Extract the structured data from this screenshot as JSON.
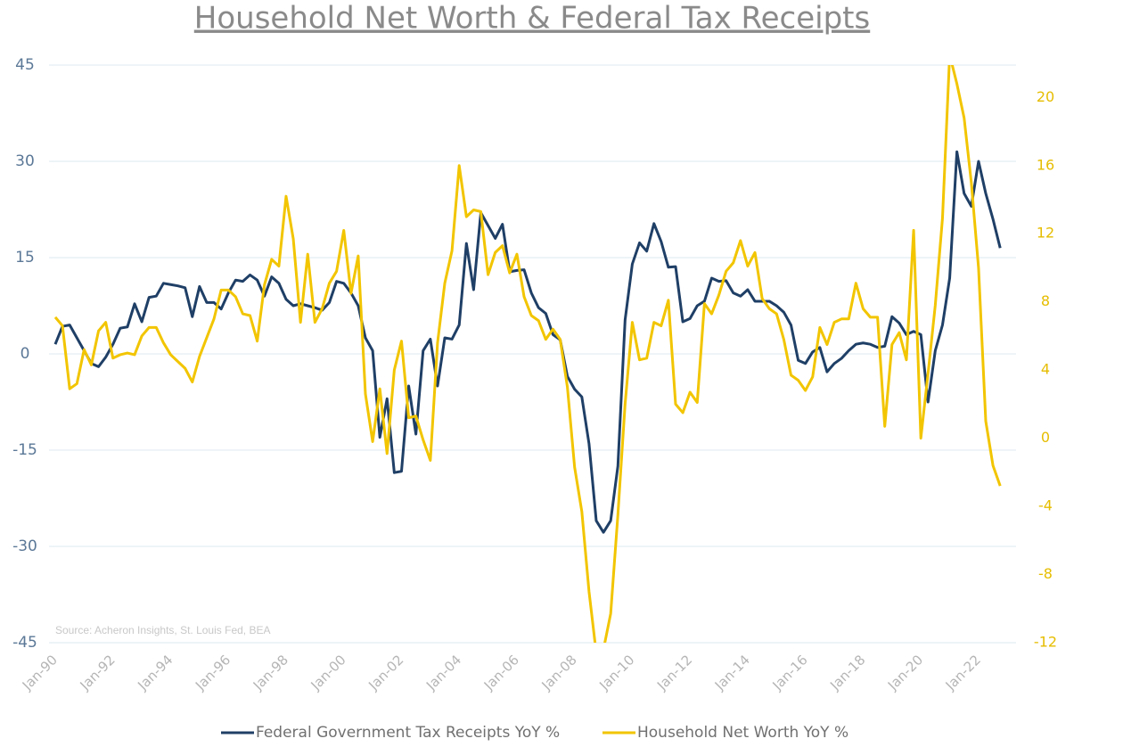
{
  "chart_data": {
    "type": "line",
    "title": "Household Net Worth & Federal Tax Receipts",
    "source": "Source: Acheron Insights, St. Louis Fed, BEA",
    "x": [
      1990,
      1990.25,
      1990.5,
      1990.75,
      1991,
      1991.25,
      1991.5,
      1991.75,
      1992,
      1992.25,
      1992.5,
      1992.75,
      1993,
      1993.25,
      1993.5,
      1993.75,
      1994,
      1994.25,
      1994.5,
      1994.75,
      1995,
      1995.25,
      1995.5,
      1995.75,
      1996,
      1996.25,
      1996.5,
      1996.75,
      1997,
      1997.25,
      1997.5,
      1997.75,
      1998,
      1998.25,
      1998.5,
      1998.75,
      1999,
      1999.25,
      1999.5,
      1999.75,
      2000,
      2000.25,
      2000.5,
      2000.75,
      2001,
      2001.25,
      2001.5,
      2001.75,
      2002,
      2002.25,
      2002.5,
      2002.75,
      2003,
      2003.25,
      2003.5,
      2003.75,
      2004,
      2004.25,
      2004.5,
      2004.75,
      2005,
      2005.25,
      2005.5,
      2005.75,
      2006,
      2006.25,
      2006.5,
      2006.75,
      2007,
      2007.25,
      2007.5,
      2007.75,
      2008,
      2008.25,
      2008.5,
      2008.75,
      2009,
      2009.25,
      2009.5,
      2009.75,
      2010,
      2010.25,
      2010.5,
      2010.75,
      2011,
      2011.25,
      2011.5,
      2011.75,
      2012,
      2012.25,
      2012.5,
      2012.75,
      2013,
      2013.25,
      2013.5,
      2013.75,
      2014,
      2014.25,
      2014.5,
      2014.75,
      2015,
      2015.25,
      2015.5,
      2015.75,
      2016,
      2016.25,
      2016.5,
      2016.75,
      2017,
      2017.25,
      2017.5,
      2017.75,
      2018,
      2018.25,
      2018.5,
      2018.75,
      2019,
      2019.25,
      2019.5,
      2019.75,
      2020,
      2020.25,
      2020.5,
      2020.75,
      2021,
      2021.25,
      2021.5,
      2021.75,
      2022,
      2022.25,
      2022.5,
      2022.75
    ],
    "series": [
      {
        "name": "Federal Government Tax Receipts YoY %",
        "color": "#1f3f66",
        "axis": "y",
        "values": [
          1.5,
          4.3,
          4.5,
          2.5,
          0.5,
          -1.5,
          -2,
          -0.5,
          1.5,
          4,
          4.2,
          7.8,
          5,
          8.8,
          9,
          11,
          10.8,
          10.6,
          10.3,
          5.8,
          10.5,
          8,
          8,
          7,
          9.5,
          11.5,
          11.3,
          12.3,
          11.5,
          9,
          12,
          11,
          8.5,
          7.5,
          7.8,
          7.5,
          7.2,
          6.8,
          8,
          11.3,
          11,
          9.5,
          7.5,
          2.5,
          0.5,
          -13,
          -7,
          -18.5,
          -18.3,
          -5,
          -12.5,
          0.5,
          2.3,
          -5,
          2.5,
          2.3,
          4.5,
          17.2,
          10,
          22,
          20,
          18,
          20.2,
          12.8,
          13,
          13.1,
          9.5,
          7.2,
          6.3,
          3,
          2.2,
          -3.5,
          -5.5,
          -6.7,
          -14,
          -26,
          -27.8,
          -26,
          -17.5,
          5.3,
          14,
          17.3,
          16,
          20.3,
          17.5,
          13.5,
          13.6,
          5,
          5.5,
          7.5,
          8.2,
          11.8,
          11.3,
          11.4,
          9.5,
          9,
          10,
          8.2,
          8.2,
          8.2,
          7.5,
          6.5,
          4.5,
          -1,
          -1.5,
          0.3,
          1,
          -2.8,
          -1.5,
          -0.7,
          0.5,
          1.5,
          1.7,
          1.5,
          1,
          1.2,
          5.8,
          4.8,
          3,
          3.5,
          3,
          -7.5,
          0.5,
          4.5,
          11.8,
          31.5,
          25,
          23,
          30,
          25,
          21,
          16.5
        ]
      },
      {
        "name": "Household Net Worth YoY %",
        "color": "#f2c500",
        "axis": "y2",
        "values": [
          7.1,
          6.6,
          2.9,
          3.2,
          5.2,
          4.3,
          6.3,
          6.8,
          4.7,
          4.9,
          5,
          4.9,
          6,
          6.5,
          6.5,
          5.6,
          4.9,
          4.5,
          4.1,
          3.3,
          4.8,
          5.9,
          7,
          8.7,
          8.7,
          8.3,
          7.3,
          7.2,
          5.7,
          9,
          10.5,
          10.1,
          14.2,
          11.7,
          6.8,
          10.8,
          6.8,
          7.6,
          9.1,
          9.8,
          12.2,
          8.5,
          10.7,
          2.6,
          -0.2,
          2.9,
          -0.9,
          4,
          5.7,
          1.2,
          1.3,
          -0.1,
          -1.3,
          5.6,
          9.1,
          11,
          16,
          13,
          13.4,
          13.3,
          9.6,
          10.9,
          11.3,
          9.7,
          10.8,
          8.3,
          7.2,
          6.9,
          5.8,
          6.4,
          5.8,
          3,
          -1.7,
          -4.3,
          -9,
          -12.6,
          -12.4,
          -10.3,
          -4.5,
          2,
          6.8,
          4.6,
          4.7,
          6.8,
          6.6,
          8.1,
          2,
          1.5,
          2.7,
          2.1,
          7.9,
          7.3,
          8.4,
          9.8,
          10.3,
          11.6,
          10.1,
          10.9,
          8.2,
          7.6,
          7.3,
          5.8,
          3.7,
          3.4,
          2.8,
          3.6,
          6.5,
          5.5,
          6.8,
          7,
          7,
          9.1,
          7.6,
          7.1,
          7.1,
          0.7,
          5.5,
          6.2,
          4.6,
          12.2,
          0,
          3.8,
          7.8,
          12.9,
          22.5,
          20.8,
          18.8,
          15,
          10,
          1,
          -1.6,
          -2.8
        ]
      }
    ],
    "xlim": [
      1990,
      2023.3
    ],
    "xticks": [
      {
        "value": 1990,
        "label": "Jan-90"
      },
      {
        "value": 1992,
        "label": "Jan-92"
      },
      {
        "value": 1994,
        "label": "Jan-94"
      },
      {
        "value": 1996,
        "label": "Jan-96"
      },
      {
        "value": 1998,
        "label": "Jan-98"
      },
      {
        "value": 2000,
        "label": "Jan-00"
      },
      {
        "value": 2002,
        "label": "Jan-02"
      },
      {
        "value": 2004,
        "label": "Jan-04"
      },
      {
        "value": 2006,
        "label": "Jan-06"
      },
      {
        "value": 2008,
        "label": "Jan-08"
      },
      {
        "value": 2010,
        "label": "Jan-10"
      },
      {
        "value": 2012,
        "label": "Jan-12"
      },
      {
        "value": 2014,
        "label": "Jan-14"
      },
      {
        "value": 2016,
        "label": "Jan-16"
      },
      {
        "value": 2018,
        "label": "Jan-18"
      },
      {
        "value": 2020,
        "label": "Jan-20"
      },
      {
        "value": 2022,
        "label": "Jan-22"
      }
    ],
    "ylim": [
      -45,
      45
    ],
    "yticks": [
      -45,
      -30,
      -15,
      0,
      15,
      30,
      45
    ],
    "y2lim": [
      -12,
      21.9
    ],
    "y2ticks": [
      -12,
      -8,
      -4,
      0,
      4,
      8,
      12,
      16,
      20
    ],
    "grid": true
  }
}
